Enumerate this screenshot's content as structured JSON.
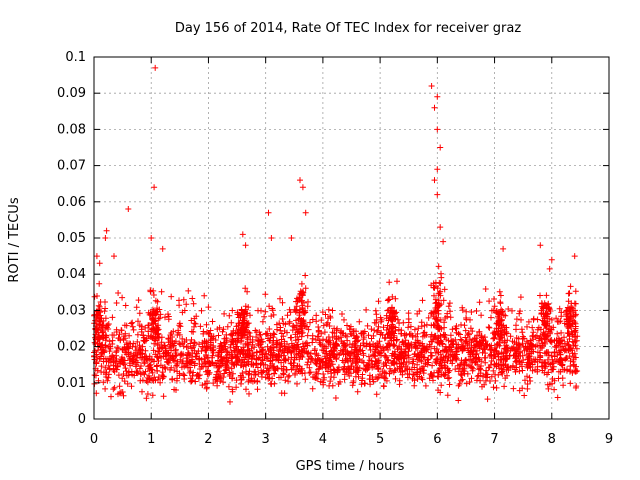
{
  "chart_data": {
    "type": "scatter",
    "title": "Day 156 of 2014, Rate Of TEC Index for receiver graz",
    "xlabel": "GPS time / hours",
    "ylabel": "ROTI / TECUs",
    "xlim": [
      0,
      9
    ],
    "ylim": [
      0,
      0.1
    ],
    "xticks": [
      "0",
      "1",
      "2",
      "3",
      "4",
      "5",
      "6",
      "7",
      "8",
      "9"
    ],
    "xtick_values": [
      0,
      1,
      2,
      3,
      4,
      5,
      6,
      7,
      8,
      9
    ],
    "yticks": [
      "0",
      "0.01",
      "0.02",
      "0.03",
      "0.04",
      "0.05",
      "0.06",
      "0.07",
      "0.08",
      "0.09",
      "0.1"
    ],
    "ytick_values": [
      0,
      0.01,
      0.02,
      0.03,
      0.04,
      0.05,
      0.06,
      0.07,
      0.08,
      0.09,
      0.1
    ],
    "grid": true,
    "marker": "+",
    "series_color": "#ff0000",
    "series": [
      {
        "name": "ROTI",
        "x_range": [
          0,
          8.45
        ],
        "baseline_band": [
          0.008,
          0.026
        ],
        "highlight_points": [
          {
            "x": 0.05,
            "y": 0.045
          },
          {
            "x": 0.1,
            "y": 0.043
          },
          {
            "x": 0.2,
            "y": 0.05
          },
          {
            "x": 0.22,
            "y": 0.052
          },
          {
            "x": 0.35,
            "y": 0.045
          },
          {
            "x": 0.6,
            "y": 0.058
          },
          {
            "x": 1.0,
            "y": 0.05
          },
          {
            "x": 1.05,
            "y": 0.064
          },
          {
            "x": 1.07,
            "y": 0.097
          },
          {
            "x": 1.2,
            "y": 0.047
          },
          {
            "x": 2.6,
            "y": 0.051
          },
          {
            "x": 2.65,
            "y": 0.048
          },
          {
            "x": 3.05,
            "y": 0.057
          },
          {
            "x": 3.1,
            "y": 0.05
          },
          {
            "x": 3.45,
            "y": 0.05
          },
          {
            "x": 3.6,
            "y": 0.066
          },
          {
            "x": 3.65,
            "y": 0.064
          },
          {
            "x": 3.7,
            "y": 0.057
          },
          {
            "x": 5.9,
            "y": 0.092
          },
          {
            "x": 5.95,
            "y": 0.086
          },
          {
            "x": 6.0,
            "y": 0.089
          },
          {
            "x": 6.0,
            "y": 0.08
          },
          {
            "x": 6.05,
            "y": 0.075
          },
          {
            "x": 6.0,
            "y": 0.069
          },
          {
            "x": 5.95,
            "y": 0.066
          },
          {
            "x": 6.0,
            "y": 0.062
          },
          {
            "x": 6.05,
            "y": 0.053
          },
          {
            "x": 6.1,
            "y": 0.049
          },
          {
            "x": 7.15,
            "y": 0.047
          },
          {
            "x": 7.8,
            "y": 0.048
          },
          {
            "x": 8.0,
            "y": 0.044
          },
          {
            "x": 8.4,
            "y": 0.045
          }
        ]
      }
    ]
  }
}
